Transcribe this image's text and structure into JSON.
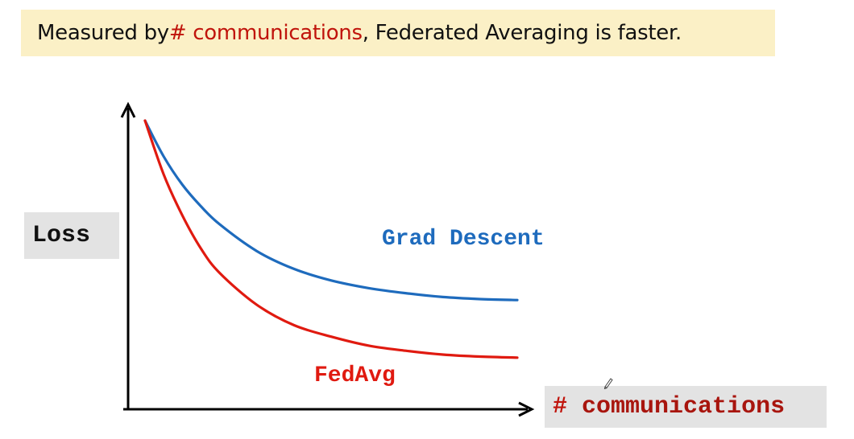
{
  "headline": {
    "prefix": "Measured by ",
    "highlight": "# communications",
    "suffix": ", Federated Averaging is faster."
  },
  "colors": {
    "headline_bg": "#fbf0c6",
    "highlight": "#c0140c",
    "grad_descent": "#1e6bbd",
    "fedavg": "#e01a10",
    "label_box_bg": "#e3e3e3"
  },
  "chart_data": {
    "type": "line",
    "ylabel": "Loss",
    "xlabel": {
      "hash": "#",
      "text": "communications"
    },
    "axis_ticks": false,
    "grid": false,
    "legend": "inline labels",
    "series": [
      {
        "name": "Grad Descent",
        "color": "#1e6bbd",
        "x": [
          0,
          0.05,
          0.1,
          0.15,
          0.2,
          0.3,
          0.4,
          0.5,
          0.6,
          0.7,
          0.8,
          0.9,
          1.0
        ],
        "y": [
          1.0,
          0.86,
          0.75,
          0.665,
          0.595,
          0.49,
          0.42,
          0.375,
          0.345,
          0.325,
          0.31,
          0.302,
          0.298
        ]
      },
      {
        "name": "FedAvg",
        "color": "#e01a10",
        "x": [
          0,
          0.05,
          0.1,
          0.15,
          0.2,
          0.3,
          0.4,
          0.5,
          0.6,
          0.7,
          0.8,
          0.9,
          1.0
        ],
        "y": [
          1.0,
          0.79,
          0.63,
          0.5,
          0.405,
          0.28,
          0.2,
          0.155,
          0.12,
          0.1,
          0.085,
          0.077,
          0.073
        ]
      }
    ],
    "xlim": [
      0,
      1
    ],
    "ylim": [
      0,
      1
    ]
  }
}
